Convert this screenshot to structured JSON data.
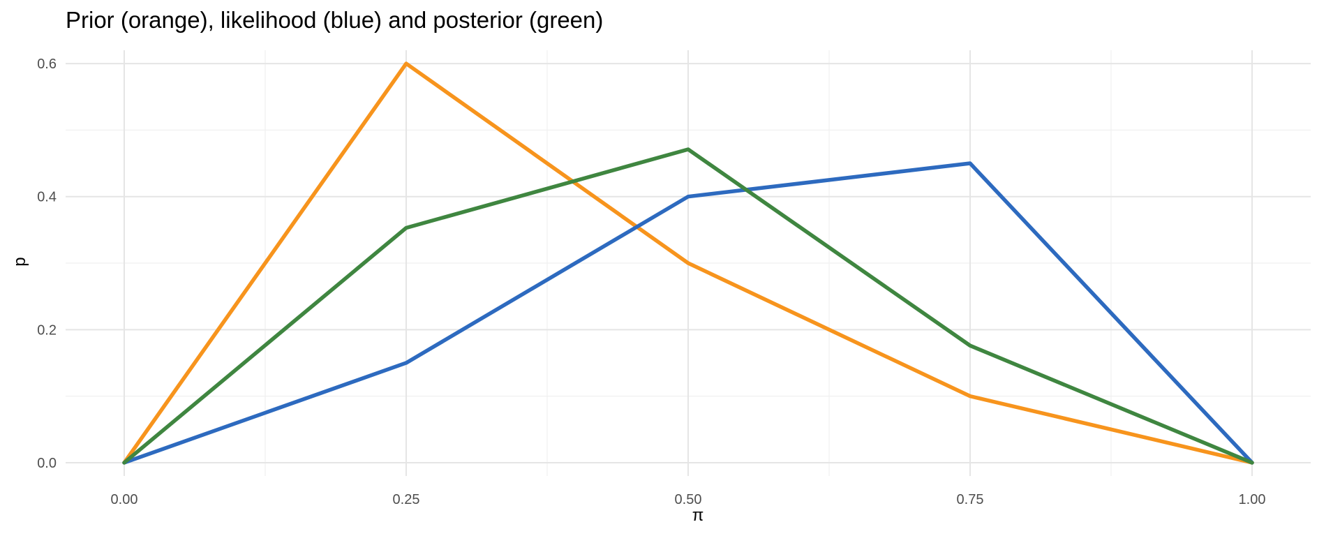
{
  "chart_data": {
    "type": "line",
    "title": "Prior (orange), likelihood (blue) and posterior (green)",
    "xlabel": "π",
    "ylabel": "p",
    "xlim": [
      0,
      1
    ],
    "ylim": [
      0,
      0.6
    ],
    "grid": true,
    "x": [
      0.0,
      0.25,
      0.5,
      0.75,
      1.0
    ],
    "x_ticks": [
      0.0,
      0.25,
      0.5,
      0.75,
      1.0
    ],
    "x_tick_labels": [
      "0.00",
      "0.25",
      "0.50",
      "0.75",
      "1.00"
    ],
    "y_ticks": [
      0.0,
      0.2,
      0.4,
      0.6
    ],
    "y_tick_labels": [
      "0.0",
      "0.2",
      "0.4",
      "0.6"
    ],
    "series": [
      {
        "key": "prior",
        "color": "#f7941d",
        "values": [
          0.0,
          0.6,
          0.3,
          0.1,
          0.0
        ]
      },
      {
        "key": "likelihood",
        "color": "#2d6abf",
        "values": [
          0.0,
          0.15,
          0.4,
          0.45,
          0.0
        ]
      },
      {
        "key": "posterior",
        "color": "#3f8640",
        "values": [
          0.0,
          0.353,
          0.471,
          0.176,
          0.0
        ]
      }
    ]
  }
}
